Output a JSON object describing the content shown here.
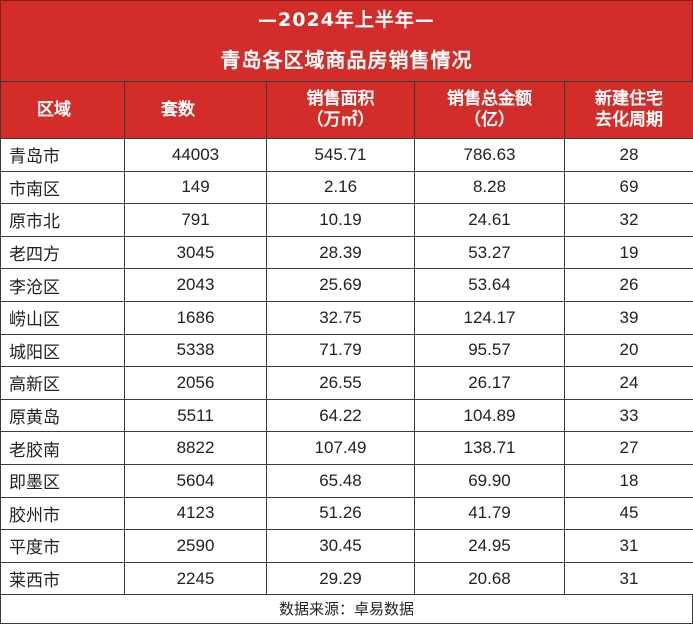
{
  "title": {
    "line1": "—2024年上半年—",
    "line2": "青岛各区域商品房销售情况"
  },
  "headers": {
    "region": "区域",
    "count": "套数",
    "area_l1": "销售面积",
    "area_l2": "（万㎡）",
    "amount_l1": "销售总金额",
    "amount_l2": "（亿）",
    "cycle_l1": "新建住宅",
    "cycle_l2": "去化周期"
  },
  "rows": [
    {
      "region": "青岛市",
      "count": "44003",
      "area": "545.71",
      "amount": "786.63",
      "cycle": "28"
    },
    {
      "region": "市南区",
      "count": "149",
      "area": "2.16",
      "amount": "8.28",
      "cycle": "69"
    },
    {
      "region": "原市北",
      "count": "791",
      "area": "10.19",
      "amount": "24.61",
      "cycle": "32"
    },
    {
      "region": "老四方",
      "count": "3045",
      "area": "28.39",
      "amount": "53.27",
      "cycle": "19"
    },
    {
      "region": "李沧区",
      "count": "2043",
      "area": "25.69",
      "amount": "53.64",
      "cycle": "26"
    },
    {
      "region": "崂山区",
      "count": "1686",
      "area": "32.75",
      "amount": "124.17",
      "cycle": "39"
    },
    {
      "region": "城阳区",
      "count": "5338",
      "area": "71.79",
      "amount": "95.57",
      "cycle": "20"
    },
    {
      "region": "高新区",
      "count": "2056",
      "area": "26.55",
      "amount": "26.17",
      "cycle": "24"
    },
    {
      "region": "原黄岛",
      "count": "5511",
      "area": "64.22",
      "amount": "104.89",
      "cycle": "33"
    },
    {
      "region": "老胶南",
      "count": "8822",
      "area": "107.49",
      "amount": "138.71",
      "cycle": "27"
    },
    {
      "region": "即墨区",
      "count": "5604",
      "area": "65.48",
      "amount": "69.90",
      "cycle": "18"
    },
    {
      "region": "胶州市",
      "count": "4123",
      "area": "51.26",
      "amount": "41.79",
      "cycle": "45"
    },
    {
      "region": "平度市",
      "count": "2590",
      "area": "30.45",
      "amount": "24.95",
      "cycle": "31"
    },
    {
      "region": "莱西市",
      "count": "2245",
      "area": "29.29",
      "amount": "20.68",
      "cycle": "31"
    }
  ],
  "footer": {
    "source": "数据来源：卓易数据"
  },
  "colors": {
    "header_red": "#d32d2a",
    "header_text": "#ffffff",
    "border": "#3a3a3a"
  }
}
